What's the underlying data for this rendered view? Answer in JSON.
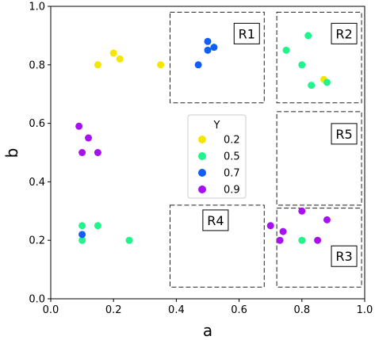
{
  "chart_data": {
    "type": "scatter",
    "xlabel": "a",
    "ylabel": "b",
    "xlim": [
      0.0,
      1.0
    ],
    "ylim": [
      0.0,
      1.0
    ],
    "xticks": [
      "0.0",
      "0.2",
      "0.4",
      "0.6",
      "0.8",
      "1.0"
    ],
    "yticks": [
      "0.0",
      "0.2",
      "0.4",
      "0.6",
      "0.8",
      "1.0"
    ],
    "grid": false,
    "legend": {
      "title": "Y",
      "placement": "center"
    },
    "series": [
      {
        "name": "0.2",
        "color": "#f5e600",
        "points": [
          [
            0.15,
            0.8
          ],
          [
            0.2,
            0.84
          ],
          [
            0.22,
            0.82
          ],
          [
            0.35,
            0.8
          ],
          [
            0.87,
            0.75
          ]
        ]
      },
      {
        "name": "0.5",
        "color": "#1ff58a",
        "points": [
          [
            0.75,
            0.85
          ],
          [
            0.82,
            0.9
          ],
          [
            0.8,
            0.8
          ],
          [
            0.83,
            0.73
          ],
          [
            0.88,
            0.74
          ],
          [
            0.1,
            0.25
          ],
          [
            0.15,
            0.25
          ],
          [
            0.1,
            0.2
          ],
          [
            0.25,
            0.2
          ],
          [
            0.8,
            0.2
          ]
        ]
      },
      {
        "name": "0.7",
        "color": "#0f5ef5",
        "points": [
          [
            0.5,
            0.88
          ],
          [
            0.5,
            0.85
          ],
          [
            0.52,
            0.86
          ],
          [
            0.47,
            0.8
          ],
          [
            0.1,
            0.22
          ]
        ]
      },
      {
        "name": "0.9",
        "color": "#a710f0",
        "points": [
          [
            0.09,
            0.59
          ],
          [
            0.12,
            0.55
          ],
          [
            0.1,
            0.5
          ],
          [
            0.15,
            0.5
          ],
          [
            0.7,
            0.25
          ],
          [
            0.74,
            0.23
          ],
          [
            0.73,
            0.2
          ],
          [
            0.8,
            0.3
          ],
          [
            0.88,
            0.27
          ],
          [
            0.85,
            0.2
          ]
        ]
      }
    ],
    "regions": [
      {
        "label": "R1",
        "x0": 0.38,
        "x1": 0.68,
        "y0": 0.67,
        "y1": 0.98
      },
      {
        "label": "R2",
        "x0": 0.72,
        "x1": 0.99,
        "y0": 0.67,
        "y1": 0.98
      },
      {
        "label": "R5",
        "x0": 0.72,
        "x1": 0.99,
        "y0": 0.32,
        "y1": 0.64
      },
      {
        "label": "R4",
        "x0": 0.38,
        "x1": 0.68,
        "y0": 0.04,
        "y1": 0.32
      },
      {
        "label": "R3",
        "x0": 0.72,
        "x1": 0.99,
        "y0": 0.04,
        "y1": 0.31
      }
    ]
  }
}
